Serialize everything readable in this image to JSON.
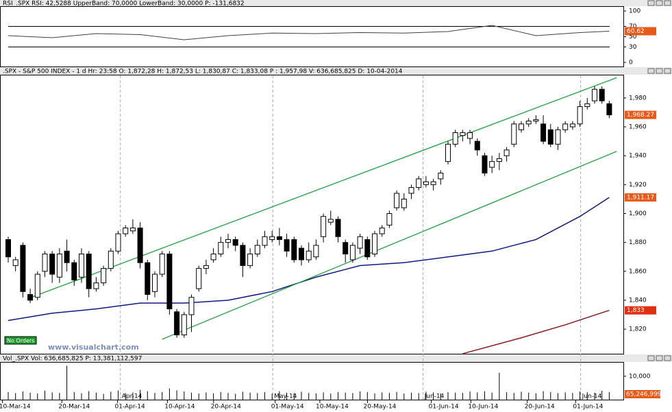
{
  "chart_data": [
    {
      "type": "line",
      "title": "RSI_.SPX RSI: 42,5288 UpperBand: 70,0000 LowerBand: 30,0000 P: -131,6832",
      "ylim": [
        0,
        100
      ],
      "yticks": [
        0,
        30,
        50,
        70,
        100
      ],
      "bands": [
        70,
        30
      ],
      "series": [
        {
          "name": "RSI",
          "color": "#404040",
          "x": [
            0,
            6,
            12,
            18,
            24,
            30,
            36,
            42,
            48,
            54,
            60,
            66,
            72,
            78,
            82
          ],
          "values": [
            52,
            48,
            56,
            54,
            44,
            52,
            57,
            56,
            58,
            57,
            60,
            72,
            52,
            58,
            60.62
          ],
          "last_label": "60.62"
        }
      ]
    },
    {
      "type": "candlestick",
      "title": ".SPX - S&P 500 INDEX -  1 d Hr: 23:58 O: 1,872,28 H: 1,872,53 L: 1,830,87 C: 1,833,08 P : 1,957,98 V: 636,685,825 D: 10-04-2014",
      "ylim": [
        1802.5,
        1995.6
      ],
      "yticks": [
        {
          "value": 1820,
          "label": "1,820"
        },
        {
          "value": 1840,
          "label": "1,840"
        },
        {
          "value": 1860,
          "label": "1,860"
        },
        {
          "value": 1880,
          "label": "1,880"
        },
        {
          "value": 1900,
          "label": "1,900"
        },
        {
          "value": 1920,
          "label": "1,920"
        },
        {
          "value": 1940,
          "label": "1,940"
        },
        {
          "value": 1960,
          "label": "1,960"
        },
        {
          "value": 1980,
          "label": "1,980"
        }
      ],
      "open": [
        1882,
        1864,
        1878,
        1844,
        1842,
        1860,
        1872,
        1856,
        1874,
        1866,
        1856,
        1872,
        1848,
        1852,
        1862,
        1874,
        1886,
        1888,
        1890,
        1866,
        1846,
        1858,
        1872,
        1832,
        1816,
        1830,
        1848,
        1862,
        1868,
        1872,
        1880,
        1882,
        1878,
        1864,
        1872,
        1878,
        1882,
        1884,
        1882,
        1882,
        1876,
        1868,
        1870,
        1884,
        1894,
        1896,
        1880,
        1868,
        1876,
        1882,
        1872,
        1886,
        1892,
        1904,
        1904,
        1914,
        1918,
        1920,
        1920,
        1924,
        1936,
        1948,
        1954,
        1952,
        1950,
        1940,
        1932,
        1936,
        1940,
        1948,
        1958,
        1962,
        1964,
        1962,
        1958,
        1948,
        1958,
        1960,
        1962,
        1974,
        1978,
        1986,
        1976
      ],
      "high": [
        1884,
        1870,
        1880,
        1848,
        1860,
        1874,
        1874,
        1876,
        1882,
        1868,
        1876,
        1874,
        1856,
        1864,
        1876,
        1888,
        1892,
        1896,
        1894,
        1868,
        1860,
        1874,
        1874,
        1834,
        1832,
        1844,
        1864,
        1868,
        1876,
        1884,
        1886,
        1884,
        1880,
        1876,
        1882,
        1888,
        1888,
        1890,
        1886,
        1884,
        1878,
        1880,
        1882,
        1900,
        1902,
        1898,
        1882,
        1880,
        1886,
        1884,
        1888,
        1892,
        1902,
        1916,
        1914,
        1920,
        1926,
        1926,
        1924,
        1930,
        1950,
        1958,
        1958,
        1958,
        1952,
        1942,
        1940,
        1942,
        1946,
        1964,
        1964,
        1966,
        1968,
        1968,
        1962,
        1960,
        1964,
        1964,
        1978,
        1980,
        1988,
        1988,
        1978
      ],
      "low": [
        1866,
        1860,
        1842,
        1838,
        1840,
        1856,
        1852,
        1852,
        1860,
        1850,
        1852,
        1842,
        1846,
        1850,
        1860,
        1872,
        1884,
        1886,
        1862,
        1840,
        1842,
        1856,
        1830,
        1814,
        1814,
        1818,
        1846,
        1858,
        1866,
        1870,
        1876,
        1874,
        1856,
        1862,
        1870,
        1876,
        1880,
        1878,
        1870,
        1866,
        1864,
        1866,
        1868,
        1880,
        1892,
        1880,
        1866,
        1866,
        1872,
        1868,
        1870,
        1884,
        1890,
        1902,
        1902,
        1910,
        1916,
        1918,
        1916,
        1920,
        1934,
        1946,
        1950,
        1948,
        1940,
        1926,
        1928,
        1930,
        1936,
        1946,
        1956,
        1960,
        1962,
        1948,
        1946,
        1944,
        1956,
        1958,
        1960,
        1972,
        1976,
        1976,
        1966
      ],
      "close": [
        1870,
        1868,
        1846,
        1840,
        1858,
        1872,
        1858,
        1872,
        1866,
        1854,
        1872,
        1848,
        1852,
        1862,
        1874,
        1886,
        1890,
        1890,
        1866,
        1844,
        1858,
        1872,
        1834,
        1816,
        1830,
        1842,
        1862,
        1864,
        1872,
        1880,
        1882,
        1878,
        1864,
        1872,
        1878,
        1884,
        1884,
        1882,
        1874,
        1868,
        1868,
        1874,
        1878,
        1898,
        1896,
        1884,
        1872,
        1878,
        1884,
        1870,
        1886,
        1890,
        1900,
        1914,
        1910,
        1918,
        1924,
        1922,
        1922,
        1928,
        1948,
        1956,
        1956,
        1956,
        1944,
        1928,
        1936,
        1938,
        1944,
        1962,
        1962,
        1964,
        1965,
        1950,
        1948,
        1958,
        1962,
        1962,
        1974,
        1976,
        1986,
        1978,
        1968.27
      ],
      "last_label": "1,968.27",
      "series": [
        {
          "name": "MA",
          "color": "#101880",
          "x": [
            0,
            6,
            12,
            18,
            24,
            30,
            36,
            42,
            48,
            54,
            60,
            66,
            72,
            78,
            82
          ],
          "values": [
            1826,
            1831,
            1834,
            1838,
            1838,
            1840,
            1846,
            1856,
            1864,
            1866,
            1870,
            1874,
            1882,
            1898,
            1911.17
          ],
          "last_label": "1,911.17",
          "label_color": "#e85a1a"
        },
        {
          "name": "MA2",
          "color": "#8b1a1a",
          "x": [
            62,
            70,
            76,
            82
          ],
          "values": [
            1803,
            1814,
            1823,
            1833
          ],
          "last_label": "1,833",
          "label_color": "#e03010"
        },
        {
          "name": "Upper channel",
          "color": "#20a040",
          "x": [
            2.6,
            83
          ],
          "values": [
            1841,
            1994
          ]
        },
        {
          "name": "Lower channel",
          "color": "#20a040",
          "x": [
            21,
            83
          ],
          "values": [
            1813,
            1943
          ]
        }
      ],
      "annotations": [
        "No Orders",
        "www.visualchart.com"
      ]
    },
    {
      "type": "bar",
      "title": "Vol_.SPX Vol: 636,685,825 P: 13,381,112,597",
      "ylim": [
        0,
        15500
      ],
      "yticks": [
        {
          "value": 10000,
          "label": "10,000"
        }
      ],
      "color": "#000000",
      "last_label": "65,246,999",
      "values": [
        3200,
        2800,
        3500,
        3000,
        2600,
        3800,
        3100,
        2900,
        14500,
        3300,
        2700,
        3600,
        3000,
        2500,
        3400,
        3900,
        2800,
        3100,
        4200,
        3600,
        2900,
        3300,
        4800,
        4000,
        3500,
        3000,
        2600,
        3100,
        2700,
        3300,
        2900,
        2500,
        3400,
        3000,
        2800,
        3200,
        2600,
        3600,
        3000,
        2800,
        3400,
        2900,
        2700,
        3100,
        2600,
        3300,
        3000,
        2800,
        3500,
        3200,
        2700,
        3100,
        2900,
        3300,
        2600,
        3000,
        2800,
        3400,
        3100,
        2700,
        3200,
        3000,
        2900,
        3500,
        3100,
        3600,
        3000,
        11500,
        3200,
        2900,
        3400,
        3000,
        2700,
        3600,
        3300,
        2800,
        3100,
        2900,
        3500,
        3200,
        3000,
        3800,
        3300
      ]
    },
    {
      "type": "axis",
      "xticks": [
        {
          "value": 0.9,
          "label": "10-Mar-14"
        },
        {
          "value": 9,
          "label": "20-Mar-14"
        },
        {
          "value": 16.6,
          "label": "01-Apr-14"
        },
        {
          "value": 23.4,
          "label": "10-Apr-14"
        },
        {
          "value": 29.7,
          "label": "20-Apr-14"
        },
        {
          "value": 38.1,
          "label": "01-May-14"
        },
        {
          "value": 44.2,
          "label": "10-May-14"
        },
        {
          "value": 50.7,
          "label": "20-May-14"
        },
        {
          "value": 59.4,
          "label": "01-Jun-14"
        },
        {
          "value": 64.8,
          "label": "10-Jun-14"
        },
        {
          "value": 72.5,
          "label": "20-Jun-14"
        },
        {
          "value": 79.1,
          "label": "01-Jun-14"
        }
      ],
      "month_ticks": [
        {
          "value": 15.3,
          "label": "Apr-14"
        },
        {
          "value": 36.1,
          "label": "May-14"
        },
        {
          "value": 56.6,
          "label": "Jun-14"
        },
        {
          "value": 78.1,
          "label": "Jun-14"
        }
      ]
    }
  ]
}
